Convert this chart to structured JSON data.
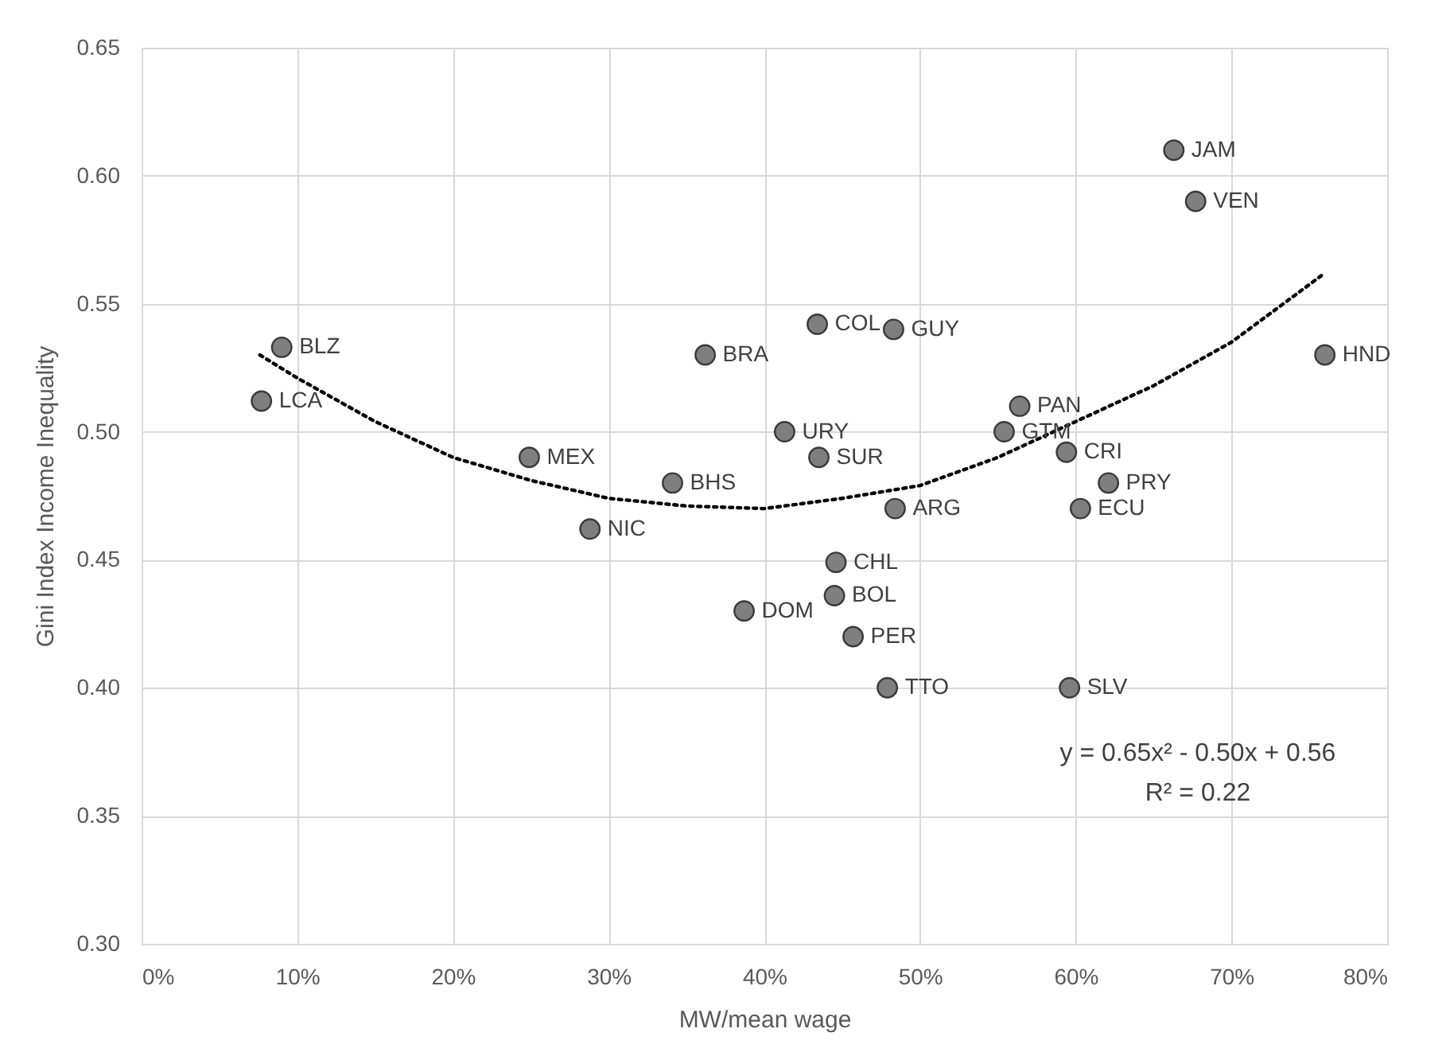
{
  "chart_data": {
    "type": "scatter",
    "xlabel": "MW/mean wage",
    "ylabel": "Gini Index Income Inequality",
    "xlim": [
      0,
      0.8
    ],
    "xticks": [
      {
        "value": 0,
        "label": "0%"
      },
      {
        "value": 0.1,
        "label": "10%"
      },
      {
        "value": 0.2,
        "label": "20%"
      },
      {
        "value": 0.3,
        "label": "30%"
      },
      {
        "value": 0.4,
        "label": "40%"
      },
      {
        "value": 0.5,
        "label": "50%"
      },
      {
        "value": 0.6,
        "label": "60%"
      },
      {
        "value": 0.7,
        "label": "70%"
      },
      {
        "value": 0.8,
        "label": "80%"
      }
    ],
    "ylim": [
      0.3,
      0.65
    ],
    "yticks": [
      {
        "value": 0.3,
        "label": "0.30"
      },
      {
        "value": 0.35,
        "label": "0.35"
      },
      {
        "value": 0.4,
        "label": "0.40"
      },
      {
        "value": 0.45,
        "label": "0.45"
      },
      {
        "value": 0.5,
        "label": "0.50"
      },
      {
        "value": 0.55,
        "label": "0.55"
      },
      {
        "value": 0.6,
        "label": "0.60"
      },
      {
        "value": 0.65,
        "label": "0.65"
      }
    ],
    "grid": true,
    "marker": "circle",
    "series": [
      {
        "color": "#7f7f7f",
        "x": [
          0.09,
          0.077,
          0.249,
          0.288,
          0.341,
          0.362,
          0.434,
          0.483,
          0.413,
          0.435,
          0.484,
          0.564,
          0.554,
          0.594,
          0.621,
          0.603,
          0.663,
          0.677,
          0.76,
          0.446,
          0.445,
          0.457,
          0.479,
          0.596,
          0.387
        ],
        "values": [
          0.533,
          0.512,
          0.49,
          0.462,
          0.48,
          0.53,
          0.542,
          0.54,
          0.5,
          0.49,
          0.47,
          0.51,
          0.5,
          0.492,
          0.48,
          0.47,
          0.61,
          0.59,
          0.53,
          0.449,
          0.436,
          0.42,
          0.4,
          0.4,
          0.43
        ]
      },
      {
        "type": "line",
        "marker": "none",
        "line_style": "dotted",
        "color": "#000000",
        "x": [
          0.076,
          0.1,
          0.15,
          0.2,
          0.25,
          0.3,
          0.35,
          0.4,
          0.45,
          0.5,
          0.55,
          0.6,
          0.65,
          0.7,
          0.76
        ],
        "values": [
          0.53,
          0.521,
          0.504,
          0.49,
          0.481,
          0.474,
          0.471,
          0.47,
          0.474,
          0.479,
          0.49,
          0.504,
          0.518,
          0.535,
          0.562
        ]
      }
    ],
    "annotations": [
      {
        "text": "BLZ",
        "x": 0.09,
        "y": 0.533
      },
      {
        "text": "LCA",
        "x": 0.077,
        "y": 0.512
      },
      {
        "text": "MEX",
        "x": 0.249,
        "y": 0.49
      },
      {
        "text": "NIC",
        "x": 0.288,
        "y": 0.462
      },
      {
        "text": "BHS",
        "x": 0.341,
        "y": 0.48
      },
      {
        "text": "BRA",
        "x": 0.362,
        "y": 0.53
      },
      {
        "text": "COL",
        "x": 0.434,
        "y": 0.542
      },
      {
        "text": "GUY",
        "x": 0.483,
        "y": 0.54
      },
      {
        "text": "URY",
        "x": 0.413,
        "y": 0.5
      },
      {
        "text": "SUR",
        "x": 0.435,
        "y": 0.49
      },
      {
        "text": "ARG",
        "x": 0.484,
        "y": 0.47
      },
      {
        "text": "PAN",
        "x": 0.564,
        "y": 0.51
      },
      {
        "text": "GTM",
        "x": 0.554,
        "y": 0.5
      },
      {
        "text": "CRI",
        "x": 0.594,
        "y": 0.492
      },
      {
        "text": "PRY",
        "x": 0.621,
        "y": 0.48
      },
      {
        "text": "ECU",
        "x": 0.603,
        "y": 0.47
      },
      {
        "text": "JAM",
        "x": 0.663,
        "y": 0.61
      },
      {
        "text": "VEN",
        "x": 0.677,
        "y": 0.59
      },
      {
        "text": "HND",
        "x": 0.76,
        "y": 0.53
      },
      {
        "text": "CHL",
        "x": 0.446,
        "y": 0.449
      },
      {
        "text": "BOL",
        "x": 0.445,
        "y": 0.436
      },
      {
        "text": "PER",
        "x": 0.457,
        "y": 0.42
      },
      {
        "text": "TTO",
        "x": 0.479,
        "y": 0.4
      },
      {
        "text": "SLV",
        "x": 0.596,
        "y": 0.4
      },
      {
        "text": "DOM",
        "x": 0.387,
        "y": 0.43
      },
      "y = 0.65x² - 0.50x + 0.56",
      "R² = 0.22"
    ]
  }
}
